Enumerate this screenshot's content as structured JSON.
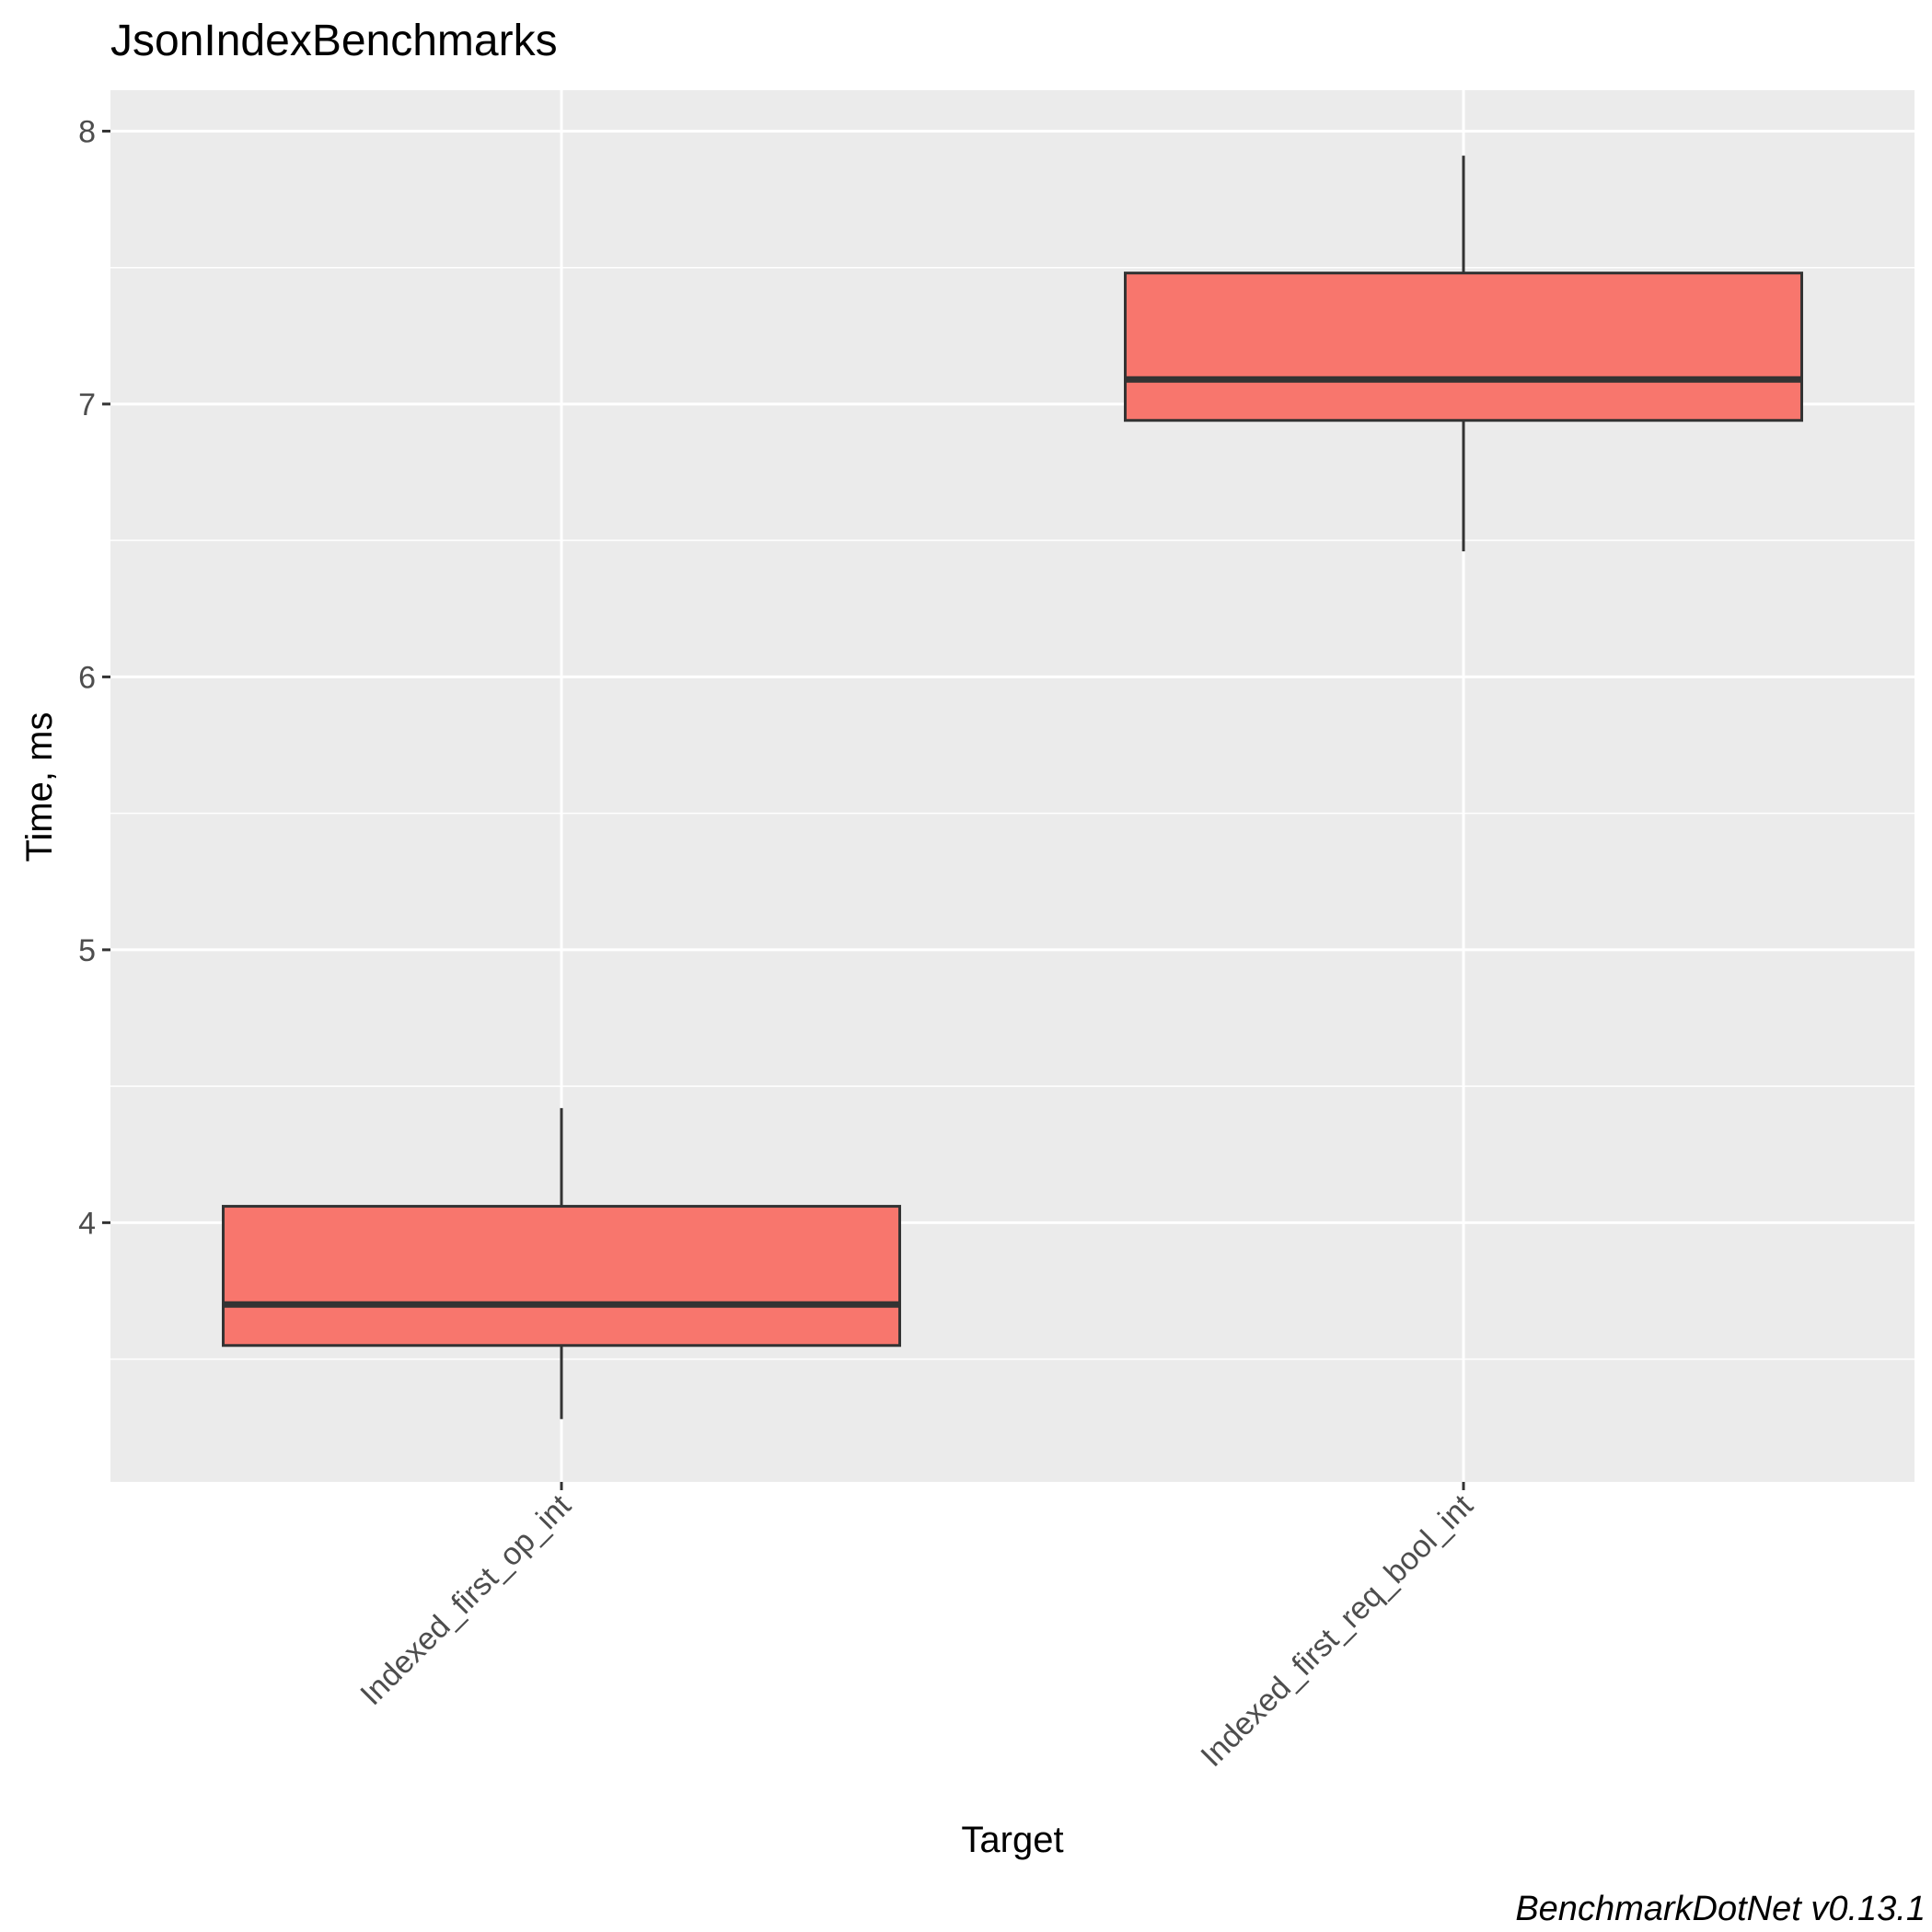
{
  "chart_data": {
    "type": "box",
    "title": "JsonIndexBenchmarks",
    "xlabel": "Target",
    "ylabel": "Time, ms",
    "caption": "BenchmarkDotNet v0.13.1",
    "categories": [
      "Indexed_first_op_int",
      "Indexed_first_req_bool_int"
    ],
    "boxes": [
      {
        "category": "Indexed_first_op_int",
        "whisker_low": 3.28,
        "q1": 3.55,
        "median": 3.7,
        "q3": 4.06,
        "whisker_high": 4.42
      },
      {
        "category": "Indexed_first_req_bool_int",
        "whisker_low": 6.46,
        "q1": 6.94,
        "median": 7.09,
        "q3": 7.48,
        "whisker_high": 7.91
      }
    ],
    "y_ticks": [
      4,
      5,
      6,
      7,
      8
    ],
    "ylim": [
      3.05,
      8.15
    ],
    "grid": true,
    "fill_color": "#F8766D",
    "outline_color": "#333333",
    "panel_background": "#EBEBEB",
    "gridline_color": "#FFFFFF"
  }
}
